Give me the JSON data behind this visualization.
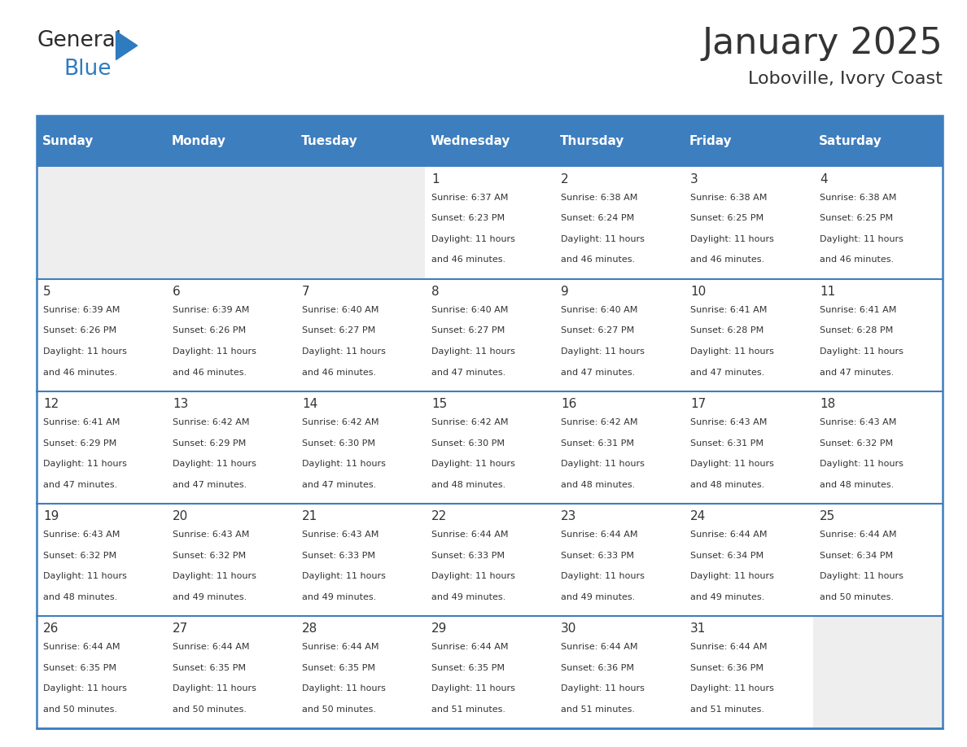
{
  "title": "January 2025",
  "subtitle": "Loboville, Ivory Coast",
  "header_bg": "#3d7ebf",
  "header_text": "#ffffff",
  "cell_bg_light": "#eeeeee",
  "cell_bg_white": "#ffffff",
  "border_color": "#3d7ebf",
  "text_color": "#333333",
  "days_of_week": [
    "Sunday",
    "Monday",
    "Tuesday",
    "Wednesday",
    "Thursday",
    "Friday",
    "Saturday"
  ],
  "weeks": [
    [
      {
        "day": "",
        "sunrise": "",
        "sunset": "",
        "daylight": ""
      },
      {
        "day": "",
        "sunrise": "",
        "sunset": "",
        "daylight": ""
      },
      {
        "day": "",
        "sunrise": "",
        "sunset": "",
        "daylight": ""
      },
      {
        "day": "1",
        "sunrise": "6:37 AM",
        "sunset": "6:23 PM",
        "daylight": "11 hours and 46 minutes."
      },
      {
        "day": "2",
        "sunrise": "6:38 AM",
        "sunset": "6:24 PM",
        "daylight": "11 hours and 46 minutes."
      },
      {
        "day": "3",
        "sunrise": "6:38 AM",
        "sunset": "6:25 PM",
        "daylight": "11 hours and 46 minutes."
      },
      {
        "day": "4",
        "sunrise": "6:38 AM",
        "sunset": "6:25 PM",
        "daylight": "11 hours and 46 minutes."
      }
    ],
    [
      {
        "day": "5",
        "sunrise": "6:39 AM",
        "sunset": "6:26 PM",
        "daylight": "11 hours and 46 minutes."
      },
      {
        "day": "6",
        "sunrise": "6:39 AM",
        "sunset": "6:26 PM",
        "daylight": "11 hours and 46 minutes."
      },
      {
        "day": "7",
        "sunrise": "6:40 AM",
        "sunset": "6:27 PM",
        "daylight": "11 hours and 46 minutes."
      },
      {
        "day": "8",
        "sunrise": "6:40 AM",
        "sunset": "6:27 PM",
        "daylight": "11 hours and 47 minutes."
      },
      {
        "day": "9",
        "sunrise": "6:40 AM",
        "sunset": "6:27 PM",
        "daylight": "11 hours and 47 minutes."
      },
      {
        "day": "10",
        "sunrise": "6:41 AM",
        "sunset": "6:28 PM",
        "daylight": "11 hours and 47 minutes."
      },
      {
        "day": "11",
        "sunrise": "6:41 AM",
        "sunset": "6:28 PM",
        "daylight": "11 hours and 47 minutes."
      }
    ],
    [
      {
        "day": "12",
        "sunrise": "6:41 AM",
        "sunset": "6:29 PM",
        "daylight": "11 hours and 47 minutes."
      },
      {
        "day": "13",
        "sunrise": "6:42 AM",
        "sunset": "6:29 PM",
        "daylight": "11 hours and 47 minutes."
      },
      {
        "day": "14",
        "sunrise": "6:42 AM",
        "sunset": "6:30 PM",
        "daylight": "11 hours and 47 minutes."
      },
      {
        "day": "15",
        "sunrise": "6:42 AM",
        "sunset": "6:30 PM",
        "daylight": "11 hours and 48 minutes."
      },
      {
        "day": "16",
        "sunrise": "6:42 AM",
        "sunset": "6:31 PM",
        "daylight": "11 hours and 48 minutes."
      },
      {
        "day": "17",
        "sunrise": "6:43 AM",
        "sunset": "6:31 PM",
        "daylight": "11 hours and 48 minutes."
      },
      {
        "day": "18",
        "sunrise": "6:43 AM",
        "sunset": "6:32 PM",
        "daylight": "11 hours and 48 minutes."
      }
    ],
    [
      {
        "day": "19",
        "sunrise": "6:43 AM",
        "sunset": "6:32 PM",
        "daylight": "11 hours and 48 minutes."
      },
      {
        "day": "20",
        "sunrise": "6:43 AM",
        "sunset": "6:32 PM",
        "daylight": "11 hours and 49 minutes."
      },
      {
        "day": "21",
        "sunrise": "6:43 AM",
        "sunset": "6:33 PM",
        "daylight": "11 hours and 49 minutes."
      },
      {
        "day": "22",
        "sunrise": "6:44 AM",
        "sunset": "6:33 PM",
        "daylight": "11 hours and 49 minutes."
      },
      {
        "day": "23",
        "sunrise": "6:44 AM",
        "sunset": "6:33 PM",
        "daylight": "11 hours and 49 minutes."
      },
      {
        "day": "24",
        "sunrise": "6:44 AM",
        "sunset": "6:34 PM",
        "daylight": "11 hours and 49 minutes."
      },
      {
        "day": "25",
        "sunrise": "6:44 AM",
        "sunset": "6:34 PM",
        "daylight": "11 hours and 50 minutes."
      }
    ],
    [
      {
        "day": "26",
        "sunrise": "6:44 AM",
        "sunset": "6:35 PM",
        "daylight": "11 hours and 50 minutes."
      },
      {
        "day": "27",
        "sunrise": "6:44 AM",
        "sunset": "6:35 PM",
        "daylight": "11 hours and 50 minutes."
      },
      {
        "day": "28",
        "sunrise": "6:44 AM",
        "sunset": "6:35 PM",
        "daylight": "11 hours and 50 minutes."
      },
      {
        "day": "29",
        "sunrise": "6:44 AM",
        "sunset": "6:35 PM",
        "daylight": "11 hours and 51 minutes."
      },
      {
        "day": "30",
        "sunrise": "6:44 AM",
        "sunset": "6:36 PM",
        "daylight": "11 hours and 51 minutes."
      },
      {
        "day": "31",
        "sunrise": "6:44 AM",
        "sunset": "6:36 PM",
        "daylight": "11 hours and 51 minutes."
      },
      {
        "day": "",
        "sunrise": "",
        "sunset": "",
        "daylight": ""
      }
    ]
  ],
  "title_fontsize": 32,
  "subtitle_fontsize": 16,
  "dayname_fontsize": 11,
  "daynum_fontsize": 11,
  "info_fontsize": 8
}
